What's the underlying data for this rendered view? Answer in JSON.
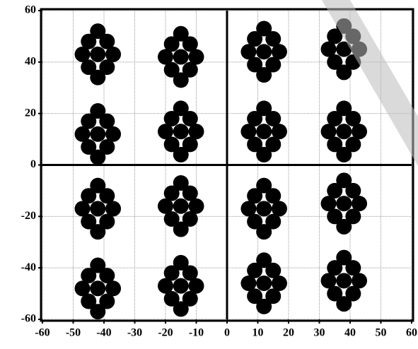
{
  "chart_data": {
    "type": "scatter",
    "color": "#000000",
    "grid": true,
    "x": [
      -42,
      -45,
      -39,
      -45,
      -39,
      -42,
      -42,
      -47,
      -37,
      -15,
      -18,
      -12,
      -18,
      -12,
      -15,
      -15,
      -20,
      -10,
      12,
      9,
      15,
      9,
      15,
      12,
      12,
      7,
      17,
      38,
      35,
      41,
      35,
      41,
      38,
      38,
      33,
      43,
      -42,
      -45,
      -39,
      -45,
      -39,
      -42,
      -42,
      -47,
      -37,
      -15,
      -18,
      -12,
      -18,
      -12,
      -15,
      -15,
      -20,
      -10,
      12,
      9,
      15,
      9,
      15,
      12,
      12,
      7,
      17,
      38,
      35,
      41,
      35,
      41,
      38,
      38,
      33,
      43,
      -42,
      -45,
      -39,
      -45,
      -39,
      -42,
      -42,
      -47,
      -37,
      -15,
      -18,
      -12,
      -18,
      -12,
      -15,
      -15,
      -20,
      -10,
      12,
      9,
      15,
      9,
      15,
      12,
      12,
      7,
      17,
      38,
      35,
      41,
      35,
      41,
      38,
      38,
      33,
      43,
      -42,
      -45,
      -39,
      -45,
      -39,
      -42,
      -42,
      -47,
      -37,
      -15,
      -18,
      -12,
      -18,
      -12,
      -15,
      -15,
      -20,
      -10,
      12,
      9,
      15,
      9,
      15,
      12,
      12,
      7,
      17,
      38,
      35,
      41,
      35,
      41,
      38,
      38,
      33,
      43
    ],
    "values": [
      43,
      48,
      48,
      38,
      38,
      52,
      34,
      43,
      43,
      42,
      47,
      47,
      37,
      37,
      51,
      33,
      42,
      42,
      44,
      49,
      49,
      39,
      39,
      53,
      35,
      44,
      44,
      45,
      50,
      50,
      40,
      40,
      54,
      36,
      45,
      45,
      12,
      17,
      17,
      7,
      7,
      21,
      3,
      12,
      12,
      13,
      18,
      18,
      8,
      8,
      22,
      4,
      13,
      13,
      13,
      18,
      18,
      8,
      8,
      22,
      4,
      13,
      13,
      13,
      18,
      18,
      8,
      8,
      22,
      4,
      13,
      13,
      -17,
      -12,
      -12,
      -22,
      -22,
      -8,
      -26,
      -17,
      -17,
      -16,
      -11,
      -11,
      -21,
      -21,
      -7,
      -25,
      -16,
      -16,
      -17,
      -12,
      -12,
      -22,
      -22,
      -8,
      -26,
      -17,
      -17,
      -15,
      -10,
      -10,
      -20,
      -20,
      -6,
      -24,
      -15,
      -15,
      -48,
      -43,
      -43,
      -53,
      -53,
      -39,
      -57,
      -48,
      -48,
      -47,
      -42,
      -42,
      -52,
      -52,
      -38,
      -56,
      -47,
      -47,
      -46,
      -41,
      -41,
      -51,
      -51,
      -37,
      -55,
      -46,
      -46,
      -45,
      -40,
      -40,
      -50,
      -50,
      -36,
      -54,
      -45,
      -45
    ],
    "xlim": [
      -60,
      60
    ],
    "ylim": [
      -60,
      60
    ],
    "xticks": [
      -60,
      -50,
      -40,
      -30,
      -20,
      -10,
      0,
      10,
      20,
      30,
      40,
      50,
      60
    ],
    "yticks": [
      -60,
      -40,
      -20,
      0,
      20,
      40,
      60
    ]
  }
}
